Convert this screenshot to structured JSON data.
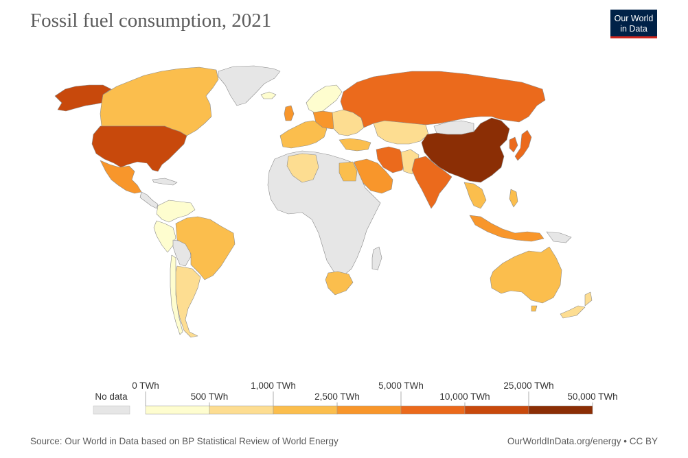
{
  "title": "Fossil fuel consumption, 2021",
  "logo": {
    "line1": "Our World",
    "line2": "in Data"
  },
  "legend": {
    "no_data_label": "No data",
    "no_data_color": "#e6e6e6",
    "bins": [
      {
        "lower": "0 TWh",
        "upper": "500 TWh",
        "color": "#fefdcf"
      },
      {
        "lower": "500 TWh",
        "upper": "1,000 TWh",
        "color": "#fddd91"
      },
      {
        "lower": "1,000 TWh",
        "upper": "2,500 TWh",
        "color": "#fbbe4d"
      },
      {
        "lower": "2,500 TWh",
        "upper": "5,000 TWh",
        "color": "#f8962b"
      },
      {
        "lower": "5,000 TWh",
        "upper": "10,000 TWh",
        "color": "#eb6a1c"
      },
      {
        "lower": "10,000 TWh",
        "upper": "25,000 TWh",
        "color": "#c8490c"
      },
      {
        "lower": "25,000 TWh",
        "upper": "50,000 TWh",
        "color": "#8b2e05"
      }
    ]
  },
  "footer": {
    "source": "Source: Our World in Data based on BP Statistical Review of World Energy",
    "attribution": "OurWorldInData.org/energy • CC BY"
  }
}
